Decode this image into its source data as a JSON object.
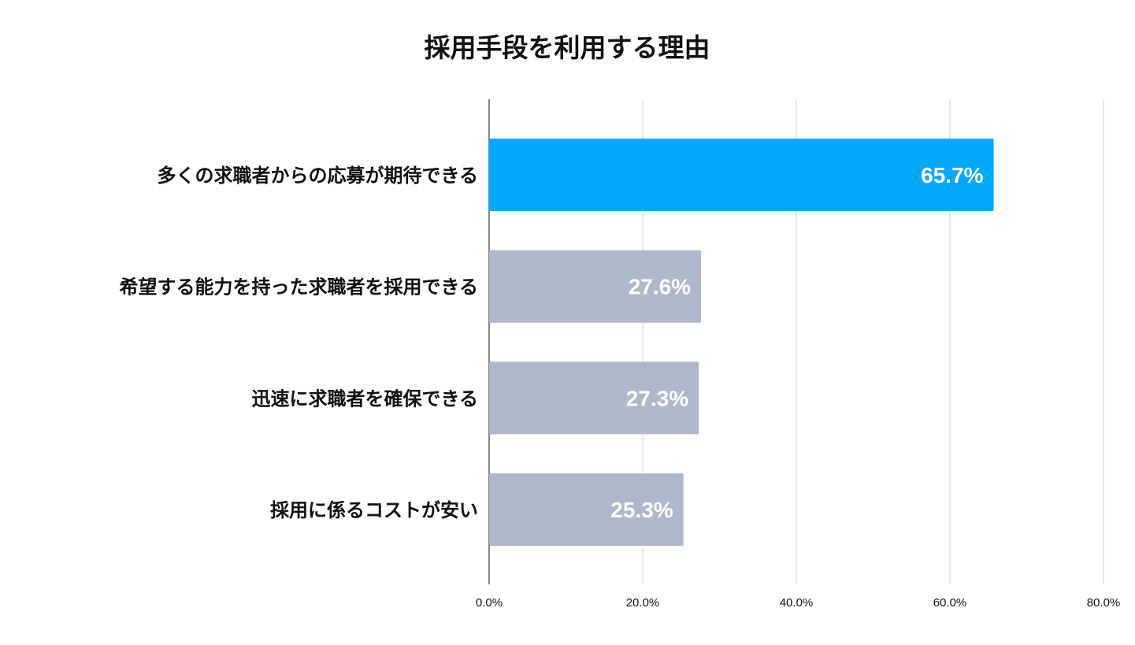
{
  "chart_data": {
    "type": "bar",
    "orientation": "horizontal",
    "title": "採用手段を利用する理由",
    "categories": [
      "多くの求職者からの応募が期待できる",
      "希望する能力を持った求職者を採用できる",
      "迅速に求職者を確保できる",
      "採用に係るコストが安い"
    ],
    "values": [
      65.7,
      27.6,
      27.3,
      25.3
    ],
    "value_labels": [
      "65.7%",
      "27.6%",
      "27.3%",
      "25.3%"
    ],
    "xlim": [
      0,
      80
    ],
    "xticks": [
      0,
      20,
      40,
      60,
      80
    ],
    "xtick_labels": [
      "0.0%",
      "20.0%",
      "40.0%",
      "60.0%",
      "80.0%"
    ],
    "xlabel": "",
    "ylabel": "",
    "grid": true,
    "legend": "none",
    "colors": {
      "highlight": "#02a9fb",
      "default": "#adb9ca",
      "highlight_index": 0
    }
  }
}
